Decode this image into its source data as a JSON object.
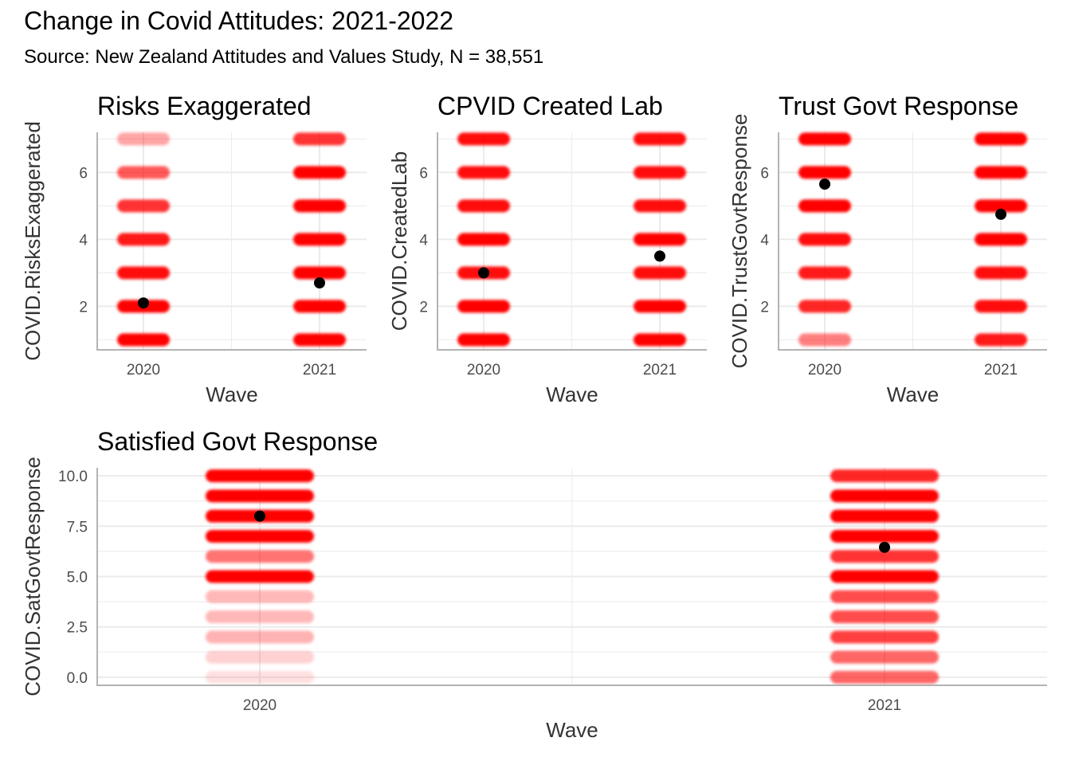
{
  "title": "Change in Covid Attitudes: 2021-2022",
  "subtitle": "Source: New Zealand Attitudes and Values Study, N = 38,551",
  "colors": {
    "jitter": "#ff0000",
    "mean": "#000000",
    "grid": "#ebebeb",
    "axis": "#b3b3b3"
  },
  "chart_data": [
    {
      "type": "scatter",
      "title": "Risks Exaggerated",
      "xlabel": "Wave",
      "ylabel": "COVID.RisksExaggerated",
      "categories": [
        "2020",
        "2021"
      ],
      "ylim": [
        0.7,
        7.2
      ],
      "yticks": [
        "2",
        "4",
        "6"
      ],
      "levels": [
        1,
        2,
        3,
        4,
        5,
        6,
        7
      ],
      "intensity": [
        [
          1.0,
          1.0,
          0.95,
          0.9,
          0.8,
          0.65,
          0.35
        ],
        [
          1.0,
          1.0,
          1.0,
          1.0,
          1.0,
          1.0,
          0.8
        ]
      ],
      "means": [
        2.1,
        2.7
      ]
    },
    {
      "type": "scatter",
      "title": "CPVID Created Lab",
      "xlabel": "Wave",
      "ylabel": "COVID.CreatedLab",
      "categories": [
        "2020",
        "2021"
      ],
      "ylim": [
        0.7,
        7.2
      ],
      "yticks": [
        "2",
        "4",
        "6"
      ],
      "levels": [
        1,
        2,
        3,
        4,
        5,
        6,
        7
      ],
      "intensity": [
        [
          1.0,
          1.0,
          0.95,
          1.0,
          0.95,
          0.95,
          0.95
        ],
        [
          1.0,
          1.0,
          0.95,
          1.0,
          0.95,
          0.95,
          0.95
        ]
      ],
      "means": [
        3.0,
        3.5
      ]
    },
    {
      "type": "scatter",
      "title": "Trust Govt Response",
      "xlabel": "Wave",
      "ylabel": "COVID.TrustGovtResponse",
      "categories": [
        "2020",
        "2021"
      ],
      "ylim": [
        0.7,
        7.2
      ],
      "yticks": [
        "2",
        "4",
        "6"
      ],
      "levels": [
        1,
        2,
        3,
        4,
        5,
        6,
        7
      ],
      "intensity": [
        [
          0.5,
          0.85,
          0.9,
          0.95,
          1.0,
          1.0,
          1.0
        ],
        [
          0.9,
          0.95,
          0.95,
          1.0,
          1.0,
          1.0,
          1.0
        ]
      ],
      "means": [
        5.65,
        4.75
      ]
    },
    {
      "type": "scatter",
      "title": "Satisfied Govt Response",
      "xlabel": "Wave",
      "ylabel": "COVID.SatGovtResponse",
      "categories": [
        "2020",
        "2021"
      ],
      "ylim": [
        -0.4,
        10.4
      ],
      "yticks": [
        "0.0",
        "2.5",
        "5.0",
        "7.5",
        "10.0"
      ],
      "levels": [
        0,
        1,
        2,
        3,
        4,
        5,
        6,
        7,
        8,
        9,
        10
      ],
      "intensity": [
        [
          0.12,
          0.18,
          0.3,
          0.28,
          0.28,
          1.0,
          0.55,
          1.0,
          1.0,
          1.0,
          1.0
        ],
        [
          0.6,
          0.6,
          0.75,
          0.7,
          0.7,
          1.0,
          0.8,
          1.0,
          1.0,
          1.0,
          0.85
        ]
      ],
      "means": [
        8.0,
        6.45
      ]
    }
  ]
}
